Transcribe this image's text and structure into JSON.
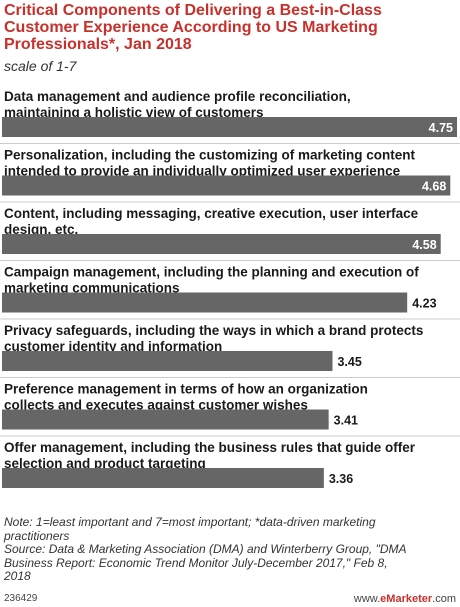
{
  "chart_data": {
    "type": "bar",
    "orientation": "horizontal",
    "title": "Critical Components of Delivering a Best-in-Class Customer Experience According to US Marketing Professionals*, Jan 2018",
    "subtitle": "scale of 1-7",
    "categories": [
      [
        "Data management and audience profile reconciliation,",
        "maintaining a holistic view of customers"
      ],
      [
        "Personalization, including the customizing of marketing content",
        "intended to provide an individually optimized user experience"
      ],
      [
        "Content, including messaging, creative execution, user interface",
        "design, etc."
      ],
      [
        "Campaign management, including the planning and execution of",
        "marketing communications"
      ],
      [
        "Privacy safeguards, including the ways in which a brand protects",
        "customer identity and information"
      ],
      [
        "Preference management in terms of how an organization",
        "collects and executes against customer wishes"
      ],
      [
        "Offer management, including the business rules that guide offer",
        "selection and product targeting"
      ]
    ],
    "values": [
      4.75,
      4.68,
      4.58,
      4.23,
      3.45,
      3.41,
      3.36
    ],
    "value_labels": [
      "4.75",
      "4.68",
      "4.58",
      "4.23",
      "3.45",
      "3.41",
      "3.36"
    ],
    "xlim": [
      0,
      4.75
    ],
    "bar_color": "#666666",
    "title_color": "#c8302b"
  },
  "notes": [
    "Note: 1=least important and 7=most important; *data-driven marketing",
    "practitioners",
    "Source: Data & Marketing Association (DMA) and Winterberry Group, \"DMA",
    "Business Report: Economic Trend Monitor July-December 2017,\" Feb 8,",
    "2018"
  ],
  "footer": {
    "id": "236429",
    "brand_prefix": "www.",
    "brand_name": "eMarketer",
    "brand_suffix": ".com"
  }
}
